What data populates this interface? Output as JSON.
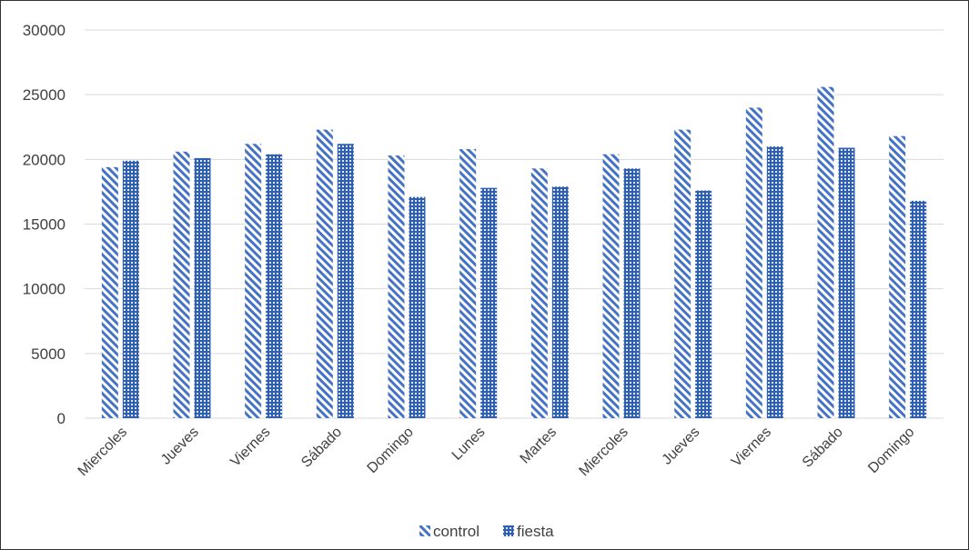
{
  "colors": {
    "series_control": "#4472c4",
    "series_fiesta": "#2f5faf",
    "gridline": "#d9d9d9",
    "text": "#404040"
  },
  "chart_data": {
    "type": "bar",
    "title": "",
    "xlabel": "",
    "ylabel": "",
    "ylim": [
      0,
      30000
    ],
    "yticks": [
      0,
      5000,
      10000,
      15000,
      20000,
      25000,
      30000
    ],
    "grid": true,
    "legend_position": "bottom",
    "categories": [
      "Miercoles",
      "Jueves",
      "Viernes",
      "Sábado",
      "Domingo",
      "Lunes",
      "Martes",
      "Miercoles",
      "Jueves",
      "Viernes",
      "Sábado",
      "Domingo"
    ],
    "series": [
      {
        "name": "control",
        "pattern": "diagonal-stripes",
        "values": [
          19400,
          20600,
          21200,
          22300,
          20300,
          20800,
          19300,
          20400,
          22300,
          24000,
          25600,
          21800
        ]
      },
      {
        "name": "fiesta",
        "pattern": "checker",
        "values": [
          19900,
          20100,
          20400,
          21200,
          17100,
          17800,
          17900,
          19300,
          17600,
          21000,
          20900,
          16800
        ]
      }
    ]
  }
}
